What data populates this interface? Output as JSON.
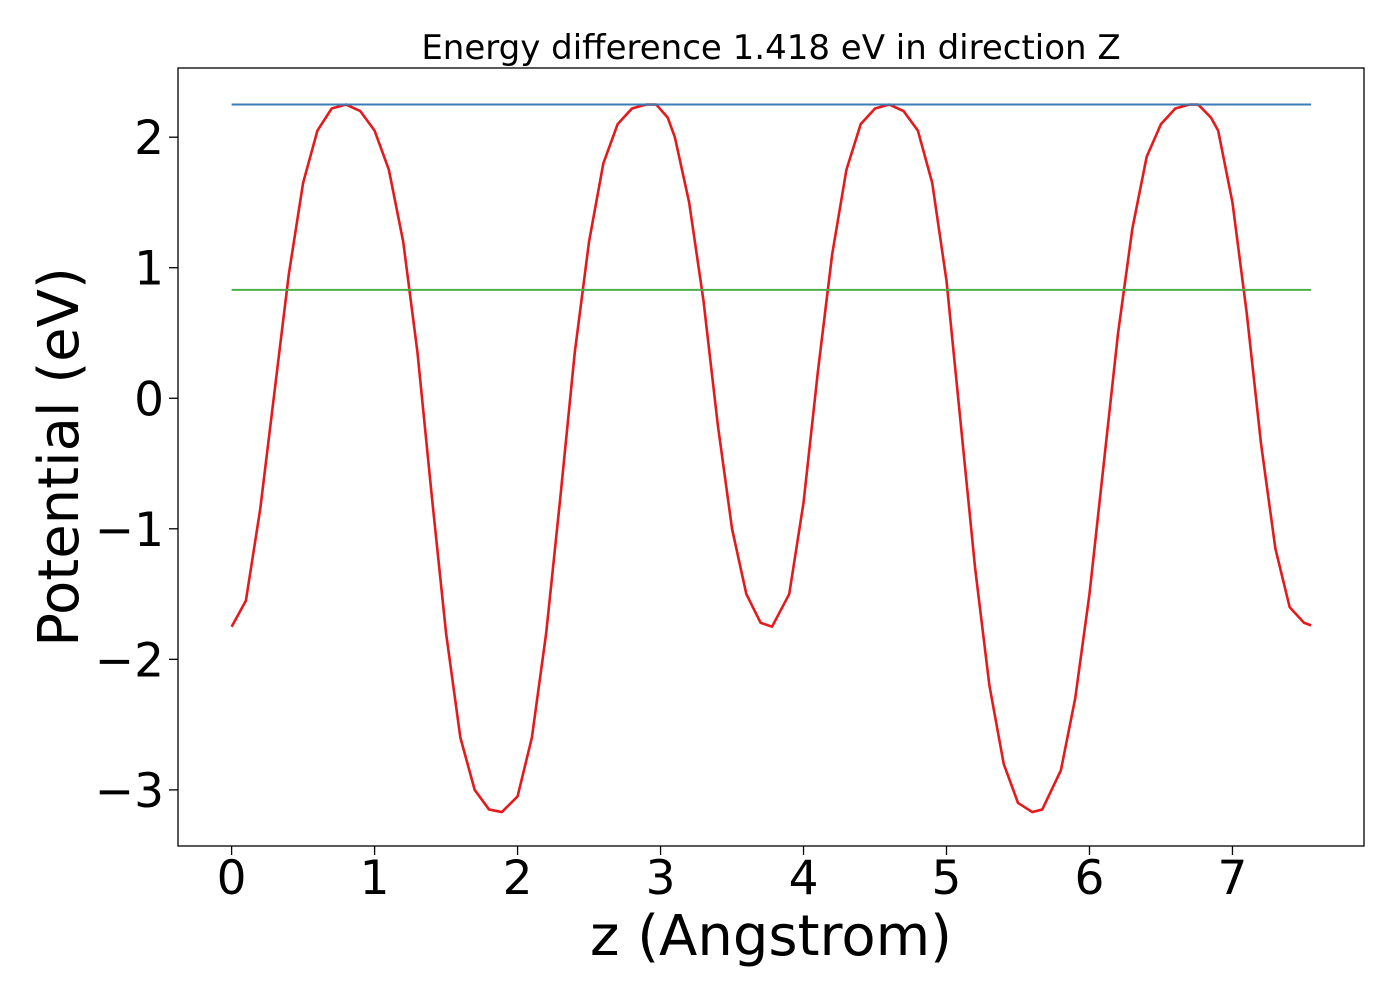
{
  "chart_data": {
    "type": "line",
    "title": "Energy difference 1.418 eV in direction Z",
    "xlabel": "z (Angstrom)",
    "ylabel": "Potential (eV)",
    "xlim": [
      -0.375,
      7.92
    ],
    "ylim": [
      -3.43,
      2.53
    ],
    "xticks": [
      0,
      1,
      2,
      3,
      4,
      5,
      6,
      7
    ],
    "xtick_labels": [
      "0",
      "1",
      "2",
      "3",
      "4",
      "5",
      "6",
      "7"
    ],
    "yticks": [
      2,
      1,
      0,
      -1,
      -2,
      -3
    ],
    "ytick_labels": [
      "2",
      "1",
      "0",
      "−1",
      "−2",
      "−3"
    ],
    "grid": false,
    "legend": "none",
    "series": [
      {
        "role": "potential-curve",
        "color": "#e41a1c",
        "x": [
          0.0,
          0.1,
          0.2,
          0.3,
          0.4,
          0.5,
          0.6,
          0.7,
          0.8,
          0.9,
          1.0,
          1.1,
          1.2,
          1.3,
          1.4,
          1.5,
          1.6,
          1.7,
          1.8,
          1.89,
          2.0,
          2.1,
          2.2,
          2.3,
          2.4,
          2.5,
          2.6,
          2.7,
          2.8,
          2.9,
          2.97,
          3.05,
          3.1,
          3.2,
          3.3,
          3.4,
          3.5,
          3.6,
          3.7,
          3.78,
          3.9,
          4.0,
          4.1,
          4.2,
          4.3,
          4.4,
          4.5,
          4.6,
          4.7,
          4.8,
          4.9,
          5.0,
          5.1,
          5.2,
          5.3,
          5.4,
          5.5,
          5.6,
          5.67,
          5.8,
          5.9,
          6.0,
          6.1,
          6.2,
          6.3,
          6.4,
          6.5,
          6.6,
          6.7,
          6.76,
          6.85,
          6.9,
          7.0,
          7.1,
          7.2,
          7.3,
          7.4,
          7.5,
          7.55
        ],
        "y": [
          -1.75,
          -1.55,
          -0.85,
          0.05,
          0.95,
          1.65,
          2.05,
          2.22,
          2.25,
          2.2,
          2.05,
          1.75,
          1.2,
          0.35,
          -0.75,
          -1.8,
          -2.6,
          -3.0,
          -3.15,
          -3.17,
          -3.05,
          -2.6,
          -1.8,
          -0.75,
          0.35,
          1.2,
          1.8,
          2.1,
          2.22,
          2.25,
          2.25,
          2.15,
          2.0,
          1.5,
          0.75,
          -0.2,
          -1.0,
          -1.5,
          -1.72,
          -1.75,
          -1.5,
          -0.8,
          0.2,
          1.1,
          1.75,
          2.1,
          2.22,
          2.25,
          2.2,
          2.05,
          1.65,
          0.9,
          -0.2,
          -1.3,
          -2.2,
          -2.8,
          -3.1,
          -3.17,
          -3.15,
          -2.85,
          -2.3,
          -1.5,
          -0.5,
          0.5,
          1.3,
          1.85,
          2.1,
          2.22,
          2.25,
          2.25,
          2.15,
          2.05,
          1.5,
          0.65,
          -0.35,
          -1.15,
          -1.6,
          -1.72,
          -1.74
        ]
      },
      {
        "role": "maximum-level",
        "color": "#377eb8",
        "x": [
          0.0,
          7.55
        ],
        "y": [
          2.25,
          2.25
        ]
      },
      {
        "role": "average-level",
        "color": "#4daf4a",
        "x": [
          0.0,
          7.55
        ],
        "y": [
          0.83,
          0.83
        ]
      }
    ]
  }
}
